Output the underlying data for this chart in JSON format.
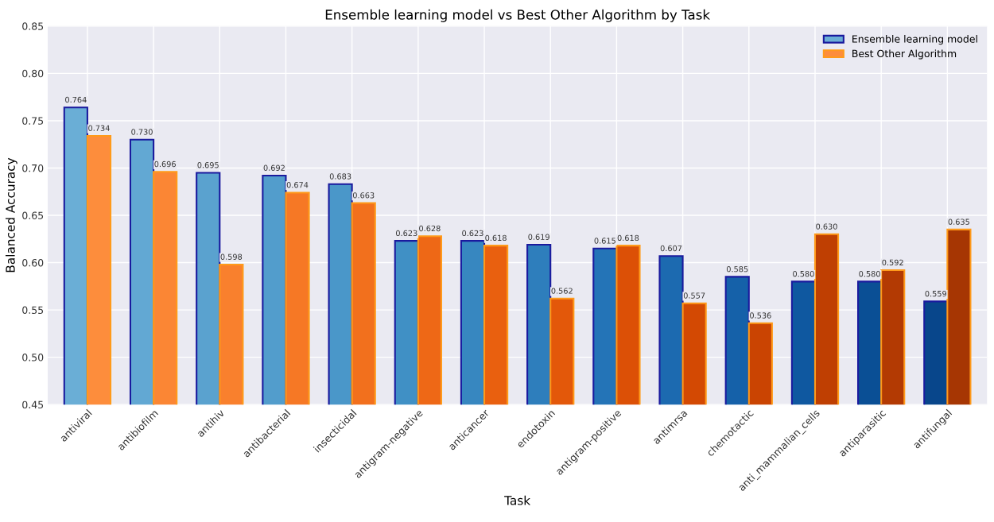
{
  "chart_data": {
    "type": "bar",
    "title": "Ensemble learning model vs Best Other Algorithm by Task",
    "xlabel": "Task",
    "ylabel": "Balanced Accuracy",
    "categories": [
      "antiviral",
      "antibiofilm",
      "antihiv",
      "antibacterial",
      "insecticidal",
      "antigram-negative",
      "anticancer",
      "endotoxin",
      "antigram-positive",
      "antimrsa",
      "chemotactic",
      "anti_mammalian_cells",
      "antiparasitic",
      "antifungal"
    ],
    "series": [
      {
        "name": "Ensemble learning model",
        "color": "#6aaed6",
        "colors": [
          "#6aaed6",
          "#62a8d3",
          "#5aa2cf",
          "#529dcc",
          "#4a97c9",
          "#4090c5",
          "#3787c0",
          "#2e7ebc",
          "#2474b7",
          "#1c6ab0",
          "#1561a9",
          "#0f58a0",
          "#0a4f95",
          "#08468b"
        ],
        "values": [
          0.764,
          0.73,
          0.695,
          0.692,
          0.683,
          0.623,
          0.623,
          0.619,
          0.615,
          0.607,
          0.585,
          0.58,
          0.58,
          0.559
        ],
        "value_labels": [
          "0.764",
          "0.730",
          "0.695",
          "0.692",
          "0.683",
          "0.623",
          "0.623",
          "0.619",
          "0.615",
          "0.607",
          "0.585",
          "0.580",
          "0.580",
          "0.559"
        ]
      },
      {
        "name": "Best Other Algorithm",
        "color": "#fd8d3c",
        "colors": [
          "#fd8d3c",
          "#fb8634",
          "#f9802d",
          "#f67825",
          "#f2701d",
          "#ee6816",
          "#e9600f",
          "#e3580a",
          "#dc5006",
          "#d34903",
          "#ca4402",
          "#bf3f02",
          "#b33a03",
          "#a63603"
        ],
        "values": [
          0.734,
          0.696,
          0.598,
          0.674,
          0.663,
          0.628,
          0.618,
          0.562,
          0.618,
          0.557,
          0.536,
          0.63,
          0.592,
          0.635
        ],
        "value_labels": [
          "0.734",
          "0.696",
          "0.598",
          "0.674",
          "0.663",
          "0.628",
          "0.618",
          "0.562",
          "0.618",
          "0.557",
          "0.536",
          "0.630",
          "0.592",
          "0.635"
        ]
      }
    ],
    "ylim": [
      0.45,
      0.85
    ],
    "yticks": [
      0.45,
      {
        "value": 0.5,
        "label": "0.50"
      },
      0.55,
      {
        "value": 0.6,
        "label": "0.60"
      },
      0.65,
      {
        "value": 0.7,
        "label": "0.70"
      },
      0.75,
      {
        "value": 0.8,
        "label": "0.80"
      },
      0.85
    ],
    "grid": true,
    "legend": "top right"
  }
}
